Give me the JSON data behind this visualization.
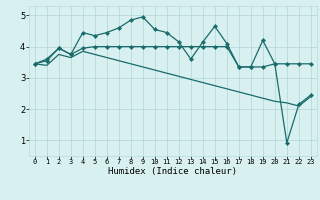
{
  "title": "",
  "xlabel": "Humidex (Indice chaleur)",
  "xlim": [
    -0.5,
    23.5
  ],
  "ylim": [
    0.5,
    5.3
  ],
  "yticks": [
    1,
    2,
    3,
    4,
    5
  ],
  "xticks": [
    0,
    1,
    2,
    3,
    4,
    5,
    6,
    7,
    8,
    9,
    10,
    11,
    12,
    13,
    14,
    15,
    16,
    17,
    18,
    19,
    20,
    21,
    22,
    23
  ],
  "bg_color": "#d8f0f0",
  "line_color": "#1a6b6b",
  "grid_color": "#b8dada",
  "line1_x": [
    0,
    1,
    2,
    3,
    4,
    5,
    6,
    7,
    8,
    9,
    10,
    11,
    12,
    13,
    14,
    15,
    16,
    17,
    18,
    19,
    20,
    21,
    22,
    23
  ],
  "line1_y": [
    3.45,
    3.6,
    3.95,
    3.75,
    4.45,
    4.35,
    4.45,
    4.6,
    4.85,
    4.95,
    4.55,
    4.45,
    4.15,
    3.6,
    4.15,
    4.65,
    4.1,
    3.35,
    3.35,
    4.2,
    3.45,
    0.92,
    2.15,
    2.45
  ],
  "line2_x": [
    0,
    1,
    2,
    3,
    4,
    5,
    6,
    7,
    8,
    9,
    10,
    11,
    12,
    13,
    14,
    15,
    16,
    17,
    18,
    19,
    20,
    21,
    22,
    23
  ],
  "line2_y": [
    3.45,
    3.55,
    3.95,
    3.75,
    3.95,
    4.0,
    4.0,
    4.0,
    4.0,
    4.0,
    4.0,
    4.0,
    4.0,
    4.0,
    4.0,
    4.0,
    4.0,
    3.35,
    3.35,
    3.35,
    3.45,
    3.45,
    3.45,
    3.45
  ],
  "line3_x": [
    0,
    1,
    2,
    3,
    4,
    5,
    6,
    7,
    8,
    9,
    10,
    11,
    12,
    13,
    14,
    15,
    16,
    17,
    18,
    19,
    20,
    21,
    22,
    23
  ],
  "line3_y": [
    3.45,
    3.4,
    3.75,
    3.65,
    3.85,
    3.75,
    3.65,
    3.55,
    3.45,
    3.35,
    3.25,
    3.15,
    3.05,
    2.95,
    2.85,
    2.75,
    2.65,
    2.55,
    2.45,
    2.35,
    2.25,
    2.2,
    2.1,
    2.4
  ],
  "marker": "D",
  "markersize": 2.2,
  "linewidth": 0.9,
  "tick_fontsize": 5.0,
  "xlabel_fontsize": 6.5
}
